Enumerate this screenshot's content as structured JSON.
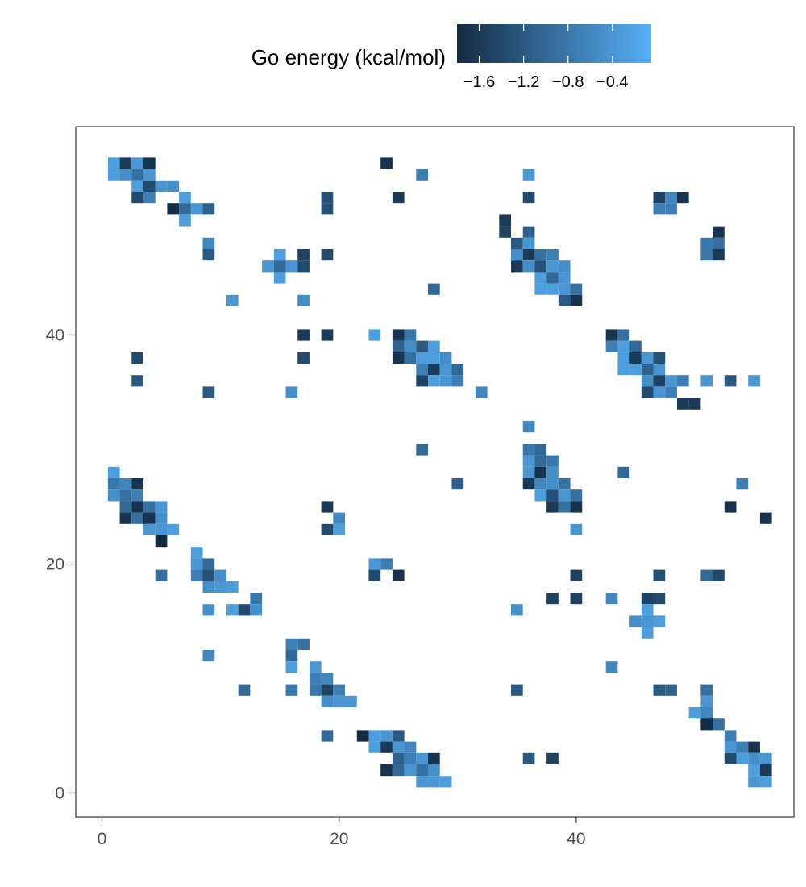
{
  "chart_data": {
    "type": "heatmap",
    "title": "",
    "xlabel": "",
    "ylabel": "",
    "xlim": [
      -2,
      57
    ],
    "ylim": [
      -2,
      58
    ],
    "x_ticks": [
      0,
      20,
      40
    ],
    "y_ticks": [
      0,
      20,
      40
    ],
    "x_tick_labels": [
      "0",
      "20",
      "40"
    ],
    "y_tick_labels": [
      "0",
      "20",
      "40"
    ],
    "grid": false,
    "legend": {
      "title": "Go energy (kcal/mol)",
      "placement": "top",
      "min": -1.8,
      "max": -0.05,
      "ticks": [
        -1.6,
        -1.2,
        -0.8,
        -0.4
      ],
      "tick_labels": [
        "−1.6",
        "−1.2",
        "−0.8",
        "−0.4"
      ],
      "color_low": "#132b43",
      "color_high": "#56b1f7"
    },
    "cells": [
      [
        1,
        55,
        -0.3
      ],
      [
        2,
        55,
        -1.6
      ],
      [
        3,
        55,
        -0.4
      ],
      [
        4,
        55,
        -1.7
      ],
      [
        1,
        54,
        -0.3
      ],
      [
        2,
        54,
        -0.5
      ],
      [
        3,
        54,
        -0.9
      ],
      [
        4,
        54,
        -0.4
      ],
      [
        3,
        53,
        -0.3
      ],
      [
        4,
        53,
        -1.4
      ],
      [
        5,
        53,
        -0.4
      ],
      [
        6,
        53,
        -0.5
      ],
      [
        3,
        52,
        -1.4
      ],
      [
        4,
        52,
        -0.7
      ],
      [
        7,
        52,
        -0.3
      ],
      [
        6,
        51,
        -1.8
      ],
      [
        7,
        51,
        -1.0
      ],
      [
        8,
        51,
        -0.4
      ],
      [
        9,
        51,
        -1.1
      ],
      [
        7,
        50,
        -0.3
      ],
      [
        9,
        48,
        -0.6
      ],
      [
        9,
        47,
        -1.2
      ],
      [
        15,
        47,
        -0.3
      ],
      [
        17,
        47,
        -1.5
      ],
      [
        19,
        47,
        -1.4
      ],
      [
        14,
        46,
        -0.4
      ],
      [
        15,
        46,
        -1.0
      ],
      [
        16,
        46,
        -0.4
      ],
      [
        17,
        46,
        -1.4
      ],
      [
        15,
        45,
        -0.3
      ],
      [
        11,
        43,
        -0.4
      ],
      [
        17,
        43,
        -0.5
      ],
      [
        17,
        40,
        -1.6
      ],
      [
        19,
        40,
        -1.6
      ],
      [
        23,
        40,
        -0.3
      ],
      [
        3,
        38,
        -1.4
      ],
      [
        17,
        38,
        -1.4
      ],
      [
        3,
        36,
        -1.2
      ],
      [
        9,
        35,
        -1.2
      ],
      [
        16,
        35,
        -0.5
      ],
      [
        24,
        55,
        -1.7
      ],
      [
        27,
        54,
        -0.7
      ],
      [
        25,
        52,
        -1.6
      ],
      [
        19,
        52,
        -1.3
      ],
      [
        19,
        51,
        -1.3
      ],
      [
        28,
        44,
        -1.0
      ],
      [
        25,
        40,
        -1.7
      ],
      [
        26,
        40,
        -0.8
      ],
      [
        25,
        39,
        -1.1
      ],
      [
        26,
        39,
        -0.5
      ],
      [
        27,
        39,
        -1.2
      ],
      [
        28,
        39,
        -0.3
      ],
      [
        25,
        38,
        -1.7
      ],
      [
        26,
        38,
        -0.9
      ],
      [
        27,
        38,
        -0.3
      ],
      [
        28,
        38,
        -0.3
      ],
      [
        29,
        38,
        -0.5
      ],
      [
        27,
        37,
        -0.7
      ],
      [
        28,
        37,
        -1.6
      ],
      [
        29,
        37,
        -0.4
      ],
      [
        30,
        37,
        -1.0
      ],
      [
        27,
        36,
        -1.5
      ],
      [
        28,
        36,
        -0.3
      ],
      [
        29,
        36,
        -0.4
      ],
      [
        30,
        36,
        -0.7
      ],
      [
        32,
        35,
        -0.6
      ],
      [
        36,
        54,
        -0.4
      ],
      [
        36,
        52,
        -1.4
      ],
      [
        34,
        50,
        -1.6
      ],
      [
        34,
        49,
        -1.5
      ],
      [
        36,
        49,
        -1.1
      ],
      [
        35,
        48,
        -1.2
      ],
      [
        36,
        48,
        -0.4
      ],
      [
        35,
        47,
        -0.5
      ],
      [
        36,
        47,
        -1.6
      ],
      [
        37,
        47,
        -0.9
      ],
      [
        38,
        47,
        -0.7
      ],
      [
        35,
        46,
        -1.6
      ],
      [
        36,
        46,
        -0.5
      ],
      [
        37,
        46,
        -1.3
      ],
      [
        38,
        46,
        -0.4
      ],
      [
        39,
        46,
        -0.5
      ],
      [
        37,
        45,
        -0.3
      ],
      [
        38,
        45,
        -1.0
      ],
      [
        39,
        45,
        -0.4
      ],
      [
        37,
        44,
        -0.3
      ],
      [
        38,
        44,
        -0.3
      ],
      [
        39,
        44,
        -0.4
      ],
      [
        40,
        44,
        -0.9
      ],
      [
        39,
        43,
        -1.2
      ],
      [
        40,
        43,
        -1.7
      ],
      [
        47,
        52,
        -1.5
      ],
      [
        48,
        52,
        -0.6
      ],
      [
        49,
        52,
        -1.7
      ],
      [
        47,
        51,
        -0.7
      ],
      [
        48,
        51,
        -0.7
      ],
      [
        52,
        49,
        -1.7
      ],
      [
        51,
        48,
        -0.8
      ],
      [
        52,
        48,
        -0.9
      ],
      [
        51,
        47,
        -0.8
      ],
      [
        52,
        47,
        -1.6
      ],
      [
        43,
        40,
        -1.7
      ],
      [
        44,
        40,
        -0.9
      ],
      [
        43,
        39,
        -0.7
      ],
      [
        44,
        39,
        -0.3
      ],
      [
        45,
        39,
        -1.0
      ],
      [
        44,
        38,
        -0.3
      ],
      [
        45,
        38,
        -1.6
      ],
      [
        46,
        38,
        -0.4
      ],
      [
        47,
        38,
        -1.3
      ],
      [
        44,
        37,
        -0.3
      ],
      [
        45,
        37,
        -0.3
      ],
      [
        46,
        37,
        -1.1
      ],
      [
        47,
        37,
        -0.4
      ],
      [
        46,
        36,
        -0.5
      ],
      [
        47,
        36,
        -1.5
      ],
      [
        48,
        36,
        -0.4
      ],
      [
        49,
        36,
        -0.7
      ],
      [
        51,
        36,
        -0.4
      ],
      [
        53,
        36,
        -1.2
      ],
      [
        55,
        36,
        -0.4
      ],
      [
        46,
        35,
        -1.4
      ],
      [
        47,
        35,
        -0.4
      ],
      [
        48,
        35,
        -0.7
      ],
      [
        49,
        34,
        -1.6
      ],
      [
        50,
        34,
        -1.6
      ],
      [
        36,
        32,
        -0.6
      ],
      [
        27,
        30,
        -1.0
      ],
      [
        36,
        30,
        -0.8
      ],
      [
        37,
        30,
        -1.0
      ],
      [
        36,
        29,
        -0.4
      ],
      [
        37,
        29,
        -1.0
      ],
      [
        38,
        29,
        -0.8
      ],
      [
        36,
        28,
        -0.4
      ],
      [
        37,
        28,
        -1.7
      ],
      [
        38,
        28,
        -0.5
      ],
      [
        44,
        28,
        -1.0
      ],
      [
        30,
        27,
        -1.1
      ],
      [
        36,
        27,
        -1.6
      ],
      [
        37,
        27,
        -0.6
      ],
      [
        38,
        27,
        -0.5
      ],
      [
        39,
        27,
        -0.9
      ],
      [
        54,
        27,
        -0.7
      ],
      [
        37,
        26,
        -0.3
      ],
      [
        38,
        26,
        -1.3
      ],
      [
        39,
        26,
        -0.4
      ],
      [
        40,
        26,
        -0.9
      ],
      [
        38,
        25,
        -1.6
      ],
      [
        39,
        25,
        -0.9
      ],
      [
        40,
        25,
        -1.7
      ],
      [
        53,
        25,
        -1.7
      ],
      [
        40,
        23,
        -0.4
      ],
      [
        56,
        24,
        -1.7
      ],
      [
        1,
        28,
        -0.3
      ],
      [
        1,
        27,
        -0.8
      ],
      [
        2,
        27,
        -0.6
      ],
      [
        3,
        27,
        -1.7
      ],
      [
        1,
        26,
        -0.5
      ],
      [
        2,
        26,
        -0.9
      ],
      [
        3,
        26,
        -0.7
      ],
      [
        2,
        25,
        -1.0
      ],
      [
        3,
        25,
        -1.7
      ],
      [
        4,
        25,
        -0.9
      ],
      [
        5,
        25,
        -0.4
      ],
      [
        2,
        24,
        -1.7
      ],
      [
        3,
        24,
        -0.9
      ],
      [
        4,
        24,
        -1.7
      ],
      [
        5,
        24,
        -0.5
      ],
      [
        4,
        23,
        -0.4
      ],
      [
        5,
        23,
        -0.4
      ],
      [
        6,
        23,
        -0.3
      ],
      [
        5,
        22,
        -1.8
      ],
      [
        19,
        25,
        -1.6
      ],
      [
        20,
        24,
        -0.6
      ],
      [
        19,
        23,
        -1.4
      ],
      [
        20,
        23,
        -0.3
      ],
      [
        8,
        21,
        -0.3
      ],
      [
        8,
        20,
        -0.4
      ],
      [
        9,
        20,
        -1.0
      ],
      [
        8,
        19,
        -0.7
      ],
      [
        9,
        19,
        -1.3
      ],
      [
        10,
        19,
        -0.5
      ],
      [
        5,
        19,
        -0.9
      ],
      [
        9,
        18,
        -0.5
      ],
      [
        10,
        18,
        -0.4
      ],
      [
        11,
        18,
        -0.3
      ],
      [
        13,
        17,
        -0.8
      ],
      [
        9,
        16,
        -0.5
      ],
      [
        11,
        16,
        -0.3
      ],
      [
        12,
        16,
        -1.4
      ],
      [
        13,
        16,
        -0.5
      ],
      [
        23,
        20,
        -0.4
      ],
      [
        24,
        20,
        -0.7
      ],
      [
        23,
        19,
        -1.4
      ],
      [
        25,
        19,
        -1.7
      ],
      [
        38,
        17,
        -1.5
      ],
      [
        40,
        17,
        -1.5
      ],
      [
        43,
        17,
        -0.6
      ],
      [
        35,
        16,
        -0.5
      ],
      [
        46,
        17,
        -1.5
      ],
      [
        47,
        17,
        -1.4
      ],
      [
        46,
        16,
        -0.3
      ],
      [
        45,
        15,
        -0.5
      ],
      [
        46,
        15,
        -0.4
      ],
      [
        47,
        15,
        -0.3
      ],
      [
        46,
        14,
        -0.3
      ],
      [
        40,
        19,
        -1.5
      ],
      [
        47,
        19,
        -1.3
      ],
      [
        51,
        19,
        -1.0
      ],
      [
        52,
        19,
        -1.4
      ],
      [
        16,
        13,
        -0.7
      ],
      [
        17,
        13,
        -0.9
      ],
      [
        16,
        12,
        -1.0
      ],
      [
        9,
        12,
        -0.6
      ],
      [
        16,
        11,
        -0.3
      ],
      [
        18,
        11,
        -0.4
      ],
      [
        18,
        10,
        -0.7
      ],
      [
        19,
        10,
        -0.6
      ],
      [
        12,
        9,
        -1.0
      ],
      [
        16,
        9,
        -0.8
      ],
      [
        18,
        9,
        -0.8
      ],
      [
        19,
        9,
        -1.5
      ],
      [
        20,
        9,
        -0.7
      ],
      [
        19,
        8,
        -0.5
      ],
      [
        20,
        8,
        -0.4
      ],
      [
        21,
        8,
        -0.4
      ],
      [
        43,
        11,
        -0.6
      ],
      [
        35,
        9,
        -1.2
      ],
      [
        47,
        9,
        -1.2
      ],
      [
        48,
        9,
        -1.1
      ],
      [
        51,
        9,
        -0.9
      ],
      [
        51,
        8,
        -0.4
      ],
      [
        50,
        7,
        -0.3
      ],
      [
        51,
        7,
        -0.6
      ],
      [
        51,
        6,
        -1.8
      ],
      [
        52,
        6,
        -0.9
      ],
      [
        53,
        5,
        -0.7
      ],
      [
        19,
        5,
        -1.0
      ],
      [
        22,
        5,
        -1.8
      ],
      [
        23,
        5,
        -0.3
      ],
      [
        24,
        5,
        -0.4
      ],
      [
        25,
        5,
        -1.2
      ],
      [
        23,
        4,
        -0.3
      ],
      [
        24,
        4,
        -1.6
      ],
      [
        25,
        4,
        -0.4
      ],
      [
        26,
        4,
        -0.6
      ],
      [
        25,
        3,
        -1.1
      ],
      [
        26,
        3,
        -0.7
      ],
      [
        27,
        3,
        -0.4
      ],
      [
        28,
        3,
        -1.7
      ],
      [
        24,
        2,
        -1.7
      ],
      [
        25,
        2,
        -1.0
      ],
      [
        26,
        2,
        -0.4
      ],
      [
        27,
        2,
        -0.9
      ],
      [
        28,
        2,
        -0.5
      ],
      [
        27,
        1,
        -0.4
      ],
      [
        28,
        1,
        -0.4
      ],
      [
        29,
        1,
        -0.3
      ],
      [
        36,
        3,
        -1.2
      ],
      [
        38,
        3,
        -1.5
      ],
      [
        53,
        4,
        -0.4
      ],
      [
        54,
        4,
        -0.7
      ],
      [
        55,
        4,
        -1.7
      ],
      [
        53,
        3,
        -1.4
      ],
      [
        54,
        3,
        -0.3
      ],
      [
        55,
        3,
        -0.5
      ],
      [
        56,
        3,
        -0.4
      ],
      [
        55,
        2,
        -0.3
      ],
      [
        56,
        2,
        -1.6
      ],
      [
        55,
        1,
        -0.4
      ],
      [
        56,
        1,
        -0.3
      ]
    ]
  }
}
